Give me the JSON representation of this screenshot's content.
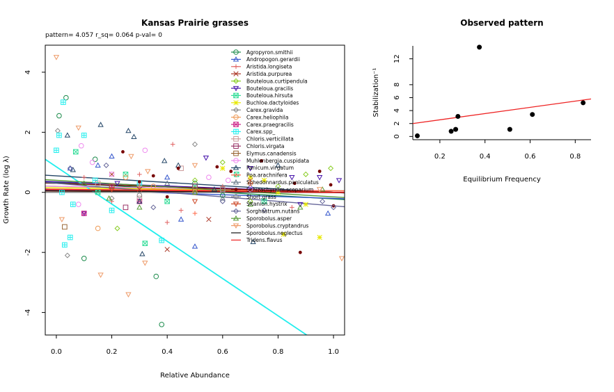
{
  "chart_data": [
    {
      "type": "scatter",
      "title": "Kansas Prairie grasses",
      "subtitle": "pattern= 4.057 r_sq= 0.064 p-val= 0",
      "xlabel": "Relative Abundance",
      "ylabel": "Growth Rate (log λ)",
      "xlim": [
        -0.04,
        1.04
      ],
      "ylim": [
        -4.75,
        4.9
      ],
      "xticks": [
        "0.0",
        "0.2",
        "0.4",
        "0.6",
        "0.8",
        "1.0"
      ],
      "xtick_values": [
        0,
        0.2,
        0.4,
        0.6,
        0.8,
        1.0
      ],
      "yticks": [
        "-4",
        "-2",
        "0",
        "2",
        "4"
      ],
      "ytick_values": [
        -4,
        -2,
        0,
        2,
        4
      ],
      "legend_position": "top-right",
      "series": [
        {
          "name": "Agropyron.smithii",
          "color": "#1a8a4a",
          "marker": "circle",
          "line": [
            0.33,
            -0.55
          ],
          "points": [
            [
              0.01,
              2.55
            ],
            [
              0.035,
              3.15
            ],
            [
              0.1,
              -2.2
            ],
            [
              0.14,
              1.1
            ],
            [
              0.36,
              -2.8
            ],
            [
              0.38,
              -4.4
            ],
            [
              0.5,
              0.3
            ],
            [
              0.6,
              -0.1
            ]
          ]
        },
        {
          "name": "Andropogon.gerardii",
          "color": "#3355cc",
          "marker": "triangle",
          "line": [
            0.1,
            -0.3
          ],
          "points": [
            [
              0.05,
              0.8
            ],
            [
              0.2,
              1.2
            ],
            [
              0.4,
              0.5
            ],
            [
              0.5,
              -1.8
            ],
            [
              0.7,
              0.2
            ],
            [
              0.98,
              -0.7
            ],
            [
              0.45,
              -0.9
            ],
            [
              0.15,
              0.9
            ]
          ]
        },
        {
          "name": "Aristida.longiseta",
          "color": "#e06060",
          "marker": "plus",
          "line": [
            0.05,
            0.0
          ],
          "points": [
            [
              0.1,
              0.5
            ],
            [
              0.2,
              -0.3
            ],
            [
              0.3,
              0.6
            ],
            [
              0.4,
              -1.0
            ],
            [
              0.45,
              -0.6
            ],
            [
              0.6,
              0.2
            ],
            [
              0.85,
              -0.5
            ],
            [
              0.42,
              1.6
            ]
          ]
        },
        {
          "name": "Aristida.purpurea",
          "color": "#aa3322",
          "marker": "x",
          "line": [
            0.04,
            -0.05
          ],
          "points": [
            [
              0.2,
              0.6
            ],
            [
              0.4,
              -1.9
            ],
            [
              0.55,
              -0.9
            ],
            [
              0.7,
              0.4
            ],
            [
              0.3,
              0.1
            ]
          ]
        },
        {
          "name": "Bouteloua.curtipendula",
          "color": "#88cc22",
          "marker": "diamond",
          "line": [
            0.2,
            -0.2
          ],
          "points": [
            [
              0.22,
              -1.2
            ],
            [
              0.5,
              0.4
            ],
            [
              0.6,
              1.0
            ],
            [
              0.8,
              0.2
            ],
            [
              0.9,
              0.6
            ],
            [
              0.99,
              0.8
            ],
            [
              0.7,
              -0.3
            ]
          ]
        },
        {
          "name": "Bouteloua.gracilis",
          "color": "#4411aa",
          "marker": "invtriangle",
          "line": [
            0.35,
            -0.35
          ],
          "points": [
            [
              0.22,
              0.3
            ],
            [
              0.54,
              1.15
            ],
            [
              0.7,
              0.8
            ],
            [
              0.85,
              0.5
            ],
            [
              0.95,
              0.5
            ],
            [
              1.02,
              0.4
            ],
            [
              0.88,
              -0.4
            ],
            [
              0.1,
              -0.7
            ]
          ]
        },
        {
          "name": "Bouteloua.hirsuta",
          "color": "#33dd99",
          "marker": "squarex",
          "line": [
            0.3,
            -0.3
          ],
          "points": [
            [
              0.07,
              1.35
            ],
            [
              0.15,
              0.0
            ],
            [
              0.25,
              0.6
            ],
            [
              0.32,
              -1.7
            ],
            [
              0.4,
              -0.3
            ],
            [
              0.5,
              0.2
            ],
            [
              0.65,
              0.6
            ],
            [
              0.75,
              -0.3
            ]
          ]
        },
        {
          "name": "Buchloe.dactyloides",
          "color": "#e8e800",
          "marker": "asterisk",
          "line": [
            0.15,
            -0.1
          ],
          "points": [
            [
              0.6,
              0.8
            ],
            [
              0.7,
              0.5
            ],
            [
              0.8,
              0.0
            ],
            [
              0.9,
              -0.4
            ],
            [
              0.95,
              -1.5
            ],
            [
              0.82,
              -1.4
            ],
            [
              0.75,
              0.4
            ]
          ]
        },
        {
          "name": "Carex.gravida",
          "color": "#888888",
          "marker": "diamond",
          "line": [
            0.0,
            0.0
          ],
          "points": [
            [
              0.005,
              2.05
            ],
            [
              0.04,
              -2.1
            ],
            [
              0.5,
              1.6
            ],
            [
              0.2,
              -0.2
            ]
          ]
        },
        {
          "name": "Carex.heliophila",
          "color": "#ee9955",
          "marker": "circle",
          "line": [
            0.1,
            -0.1
          ],
          "points": [
            [
              0.15,
              -1.2
            ],
            [
              0.25,
              0.5
            ],
            [
              0.35,
              0.2
            ],
            [
              0.5,
              0.0
            ],
            [
              0.7,
              0.3
            ]
          ]
        },
        {
          "name": "Carex.praegracilis",
          "color": "#cc2288",
          "marker": "squarex",
          "line": [
            0.08,
            -0.08
          ],
          "points": [
            [
              0.1,
              -0.7
            ],
            [
              0.2,
              0.2
            ],
            [
              0.3,
              -0.3
            ]
          ]
        },
        {
          "name": "Carex.spp_",
          "color": "#22eeee",
          "marker": "squareplus",
          "line": [
            0.85,
            -6.2
          ],
          "points": [
            [
              0.0,
              1.4
            ],
            [
              0.01,
              1.9
            ],
            [
              0.025,
              3.0
            ],
            [
              0.03,
              -1.75
            ],
            [
              0.05,
              -1.5
            ],
            [
              0.06,
              -0.4
            ],
            [
              0.1,
              1.9
            ],
            [
              0.14,
              0.4
            ],
            [
              0.2,
              -0.6
            ],
            [
              0.3,
              0.3
            ],
            [
              0.38,
              -1.6
            ],
            [
              0.02,
              0.0
            ]
          ]
        },
        {
          "name": "Chloris.verticillata",
          "color": "#cc9999",
          "marker": "square",
          "line": [
            0.1,
            -0.1
          ],
          "points": [
            [
              0.15,
              0.3
            ],
            [
              0.3,
              -0.2
            ],
            [
              0.45,
              0.8
            ],
            [
              0.6,
              0.1
            ]
          ]
        },
        {
          "name": "Chloris.virgata",
          "color": "#993366",
          "marker": "square",
          "line": [
            0.05,
            -0.05
          ],
          "points": [
            [
              0.25,
              -0.5
            ],
            [
              0.5,
              0.2
            ]
          ]
        },
        {
          "name": "Elymus.canadensis",
          "color": "#996633",
          "marker": "square",
          "line": [
            0.05,
            0.0
          ],
          "points": [
            [
              0.03,
              -1.15
            ],
            [
              0.2,
              0.2
            ],
            [
              0.5,
              0.1
            ]
          ]
        },
        {
          "name": "Muhlenbergia.cuspidata",
          "color": "#ee88ee",
          "marker": "circle",
          "line": [
            0.2,
            -0.15
          ],
          "points": [
            [
              0.08,
              -0.4
            ],
            [
              0.09,
              1.55
            ],
            [
              0.13,
              1.0
            ],
            [
              0.2,
              0.6
            ],
            [
              0.32,
              1.4
            ],
            [
              0.55,
              0.5
            ],
            [
              0.62,
              0.4
            ],
            [
              0.7,
              0.1
            ]
          ]
        },
        {
          "name": "Panicum.virgatum",
          "color": "#224466",
          "marker": "triangle",
          "line": [
            0.55,
            -0.55
          ],
          "points": [
            [
              0.04,
              1.9
            ],
            [
              0.06,
              0.75
            ],
            [
              0.16,
              2.25
            ],
            [
              0.26,
              2.05
            ],
            [
              0.28,
              1.85
            ],
            [
              0.3,
              -0.3
            ],
            [
              0.31,
              -2.05
            ],
            [
              0.39,
              1.05
            ],
            [
              0.44,
              0.9
            ],
            [
              0.71,
              -1.65
            ],
            [
              0.57,
              0.1
            ],
            [
              0.8,
              0.9
            ]
          ]
        },
        {
          "name": "Poa.arachnifera",
          "color": "#ff6644",
          "marker": "plus",
          "line": [
            0.1,
            -0.05
          ],
          "points": [
            [
              0.3,
              0.2
            ],
            [
              0.5,
              -0.7
            ],
            [
              0.7,
              0.3
            ]
          ]
        },
        {
          "name": "Schedonnardus.paniculatus",
          "color": "#667788",
          "marker": "triangle",
          "line": [
            0.0,
            0.0
          ],
          "points": [
            [
              0.4,
              0.3
            ],
            [
              0.6,
              -0.2
            ],
            [
              0.8,
              0.1
            ]
          ]
        },
        {
          "name": "Schizachyrium.scoparium",
          "color": "#770000",
          "marker": "dot",
          "line": [
            0.3,
            -0.3
          ],
          "points": [
            [
              0.24,
              1.35
            ],
            [
              0.3,
              0.35
            ],
            [
              0.35,
              0.55
            ],
            [
              0.44,
              0.8
            ],
            [
              0.58,
              0.85
            ],
            [
              0.63,
              0.7
            ],
            [
              0.74,
              1.05
            ],
            [
              0.86,
              0.3
            ],
            [
              0.88,
              -2.0
            ],
            [
              0.95,
              0.7
            ],
            [
              0.99,
              0.25
            ],
            [
              1.0,
              -0.45
            ],
            [
              0.4,
              -0.15
            ]
          ]
        },
        {
          "name": "Short.grass",
          "color": "#888888",
          "marker": "circle",
          "line": [
            0.0,
            0.0
          ],
          "points": [
            [
              0.3,
              -0.1
            ],
            [
              0.6,
              0.1
            ]
          ]
        },
        {
          "name": "Sitanion.hystrix",
          "color": "#cc4422",
          "marker": "invtriangle",
          "line": [
            0.05,
            -0.05
          ],
          "points": [
            [
              0.2,
              0.1
            ],
            [
              0.5,
              -0.3
            ]
          ]
        },
        {
          "name": "Sorghastrum.nutans",
          "color": "#666699",
          "marker": "diamond",
          "line": [
            0.3,
            -0.75
          ],
          "points": [
            [
              0.05,
              0.8
            ],
            [
              0.18,
              0.9
            ],
            [
              0.35,
              -0.5
            ],
            [
              0.6,
              -0.3
            ],
            [
              0.75,
              -0.6
            ],
            [
              0.96,
              -0.3
            ],
            [
              1.0,
              -0.5
            ]
          ]
        },
        {
          "name": "Sporobolus.asper",
          "color": "#559933",
          "marker": "triangle",
          "line": [
            0.4,
            -0.55
          ],
          "points": [
            [
              0.1,
              0.3
            ],
            [
              0.19,
              -0.2
            ],
            [
              0.3,
              -0.5
            ],
            [
              0.5,
              0.0
            ],
            [
              0.7,
              -0.4
            ],
            [
              0.88,
              -0.5
            ],
            [
              0.96,
              0.1
            ]
          ]
        },
        {
          "name": "Sporobolus.cryptandrus",
          "color": "#ee9966",
          "marker": "invtriangle",
          "line": [
            0.1,
            -0.1
          ],
          "points": [
            [
              0.0,
              4.5
            ],
            [
              0.02,
              -0.9
            ],
            [
              0.08,
              2.15
            ],
            [
              0.16,
              -2.75
            ],
            [
              0.26,
              -3.4
            ],
            [
              0.32,
              -2.35
            ],
            [
              0.27,
              1.2
            ],
            [
              0.33,
              0.7
            ],
            [
              0.5,
              0.9
            ],
            [
              1.03,
              -2.2
            ],
            [
              0.95,
              0.1
            ]
          ]
        },
        {
          "name": "Sporobolus.neglectus",
          "color": "#111111",
          "marker": "none",
          "line": [
            0.05,
            -0.05
          ],
          "points": []
        },
        {
          "name": "Tridens.flavus",
          "color": "#ee2222",
          "marker": "none",
          "line": [
            0.1,
            -0.1
          ],
          "points": []
        }
      ]
    },
    {
      "type": "scatter",
      "title": "Observed pattern",
      "xlabel": "Equilibrium Frequency",
      "ylabel": "Stabilization⁻¹",
      "xlim": [
        0.08,
        0.87
      ],
      "ylim": [
        -0.5,
        14.0
      ],
      "xticks": [
        "0.2",
        "0.4",
        "0.6",
        "0.8"
      ],
      "xtick_values": [
        0.2,
        0.4,
        0.6,
        0.8
      ],
      "yticks": [
        "0",
        "2",
        "4",
        "6",
        "8",
        "12"
      ],
      "ytick_values": [
        0,
        2,
        4,
        6,
        8,
        12
      ],
      "x": [
        0.1,
        0.25,
        0.27,
        0.28,
        0.375,
        0.51,
        0.61,
        0.835
      ],
      "y": [
        0.1,
        0.8,
        1.1,
        3.1,
        13.8,
        1.1,
        3.4,
        5.2
      ],
      "fit_line": {
        "x": [
          0.08,
          0.87
        ],
        "y": [
          2.0,
          5.8
        ],
        "color": "#ee2222"
      }
    }
  ]
}
